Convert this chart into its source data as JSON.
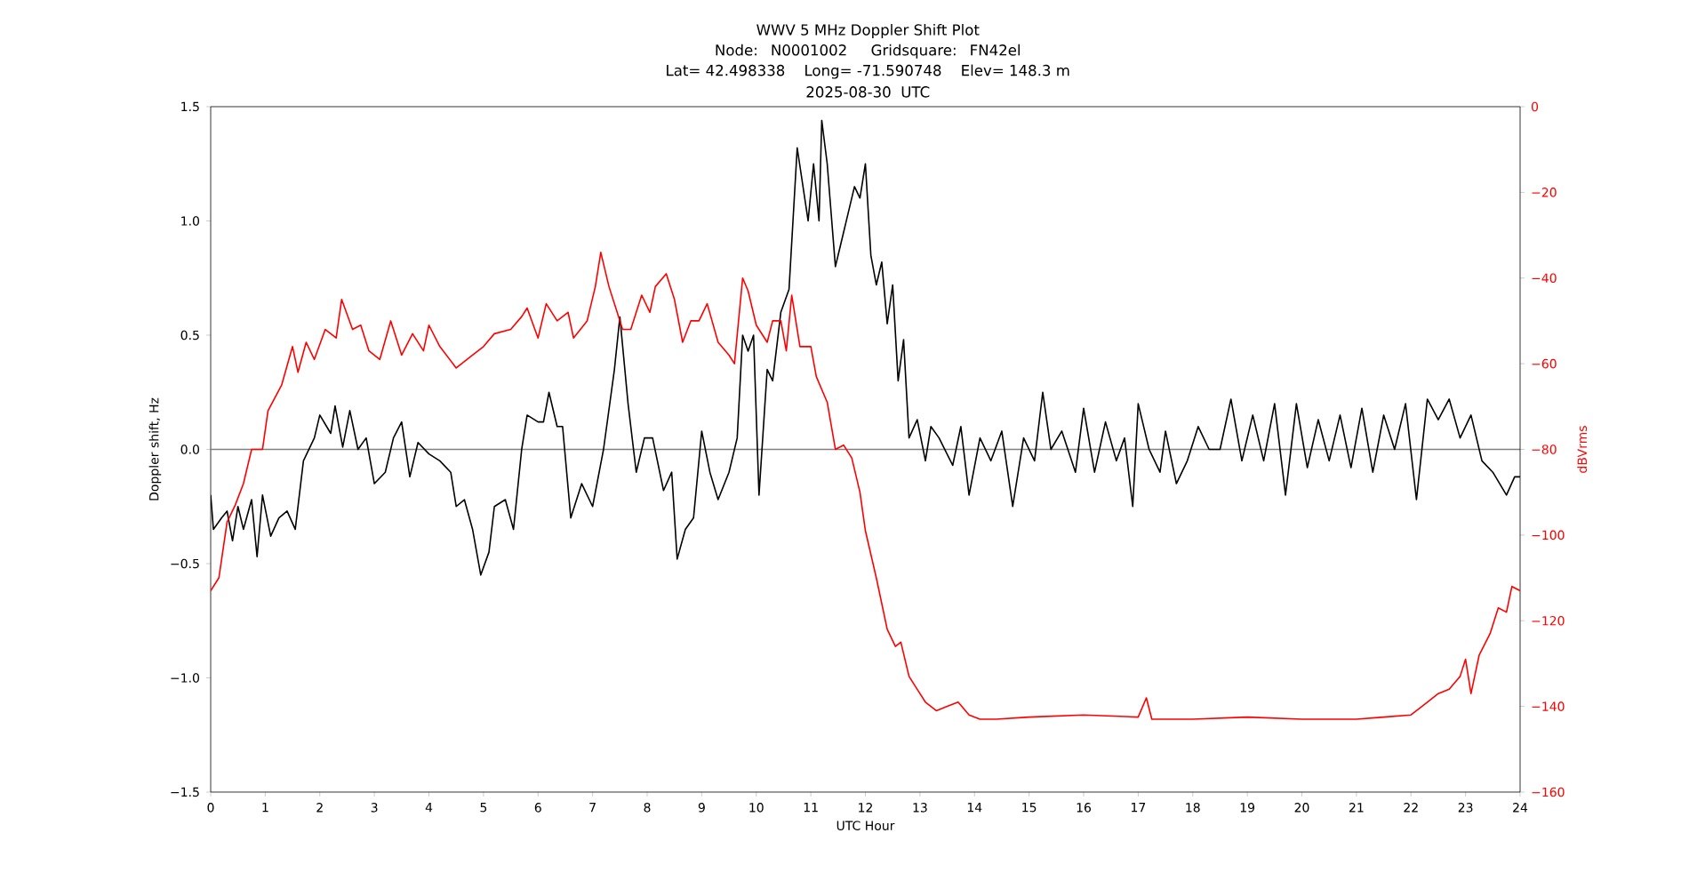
{
  "chart_data": {
    "type": "line",
    "title": "WWV 5 MHz Doppler Shift Plot",
    "subtitle": "Node:  N0001002     Gridsquare:  FN42el",
    "annotations": [
      "Lat= 42.498338    Long= -71.590748    Elev= 148.3 m",
      "2025-08-30  UTC"
    ],
    "xlabel": "UTC Hour",
    "ylabel": "Doppler shift, Hz",
    "y2label": "dBVrms",
    "xlim": [
      0,
      24
    ],
    "xticks": [
      0,
      1,
      2,
      3,
      4,
      5,
      6,
      7,
      8,
      9,
      10,
      11,
      12,
      13,
      14,
      15,
      16,
      17,
      18,
      19,
      20,
      21,
      22,
      23,
      24
    ],
    "ylim": [
      -1.5,
      1.5
    ],
    "yticks": [
      {
        "value": -1.5,
        "label": "−1.5"
      },
      {
        "value": -1.0,
        "label": "−1.0"
      },
      {
        "value": -0.5,
        "label": "−0.5"
      },
      {
        "value": 0,
        "label": "0.0"
      },
      {
        "value": 0.5,
        "label": "0.5"
      },
      {
        "value": 1.0,
        "label": "1.0"
      },
      {
        "value": 1.5,
        "label": "1.5"
      }
    ],
    "y2lim": [
      -160,
      0
    ],
    "y2ticks": [
      {
        "value": -160,
        "label": "−160"
      },
      {
        "value": -140,
        "label": "−140"
      },
      {
        "value": -120,
        "label": "−120"
      },
      {
        "value": -100,
        "label": "−100"
      },
      {
        "value": -80,
        "label": "−80"
      },
      {
        "value": -60,
        "label": "−60"
      },
      {
        "value": -40,
        "label": "−40"
      },
      {
        "value": -20,
        "label": "−20"
      },
      0
    ],
    "ref_lines": [
      {
        "axis": "y",
        "value": 0,
        "color": "#808080"
      }
    ],
    "series": [
      {
        "color": "#000000",
        "x": [
          0,
          0.05,
          0.2,
          0.3,
          0.4,
          0.5,
          0.6,
          0.75,
          0.85,
          0.95,
          1.1,
          1.25,
          1.4,
          1.55,
          1.7,
          1.9,
          2.0,
          2.2,
          2.28,
          2.42,
          2.55,
          2.7,
          2.85,
          3.0,
          3.2,
          3.35,
          3.5,
          3.65,
          3.8,
          4.0,
          4.2,
          4.4,
          4.5,
          4.65,
          4.8,
          4.95,
          5.1,
          5.2,
          5.4,
          5.55,
          5.7,
          5.8,
          6.0,
          6.1,
          6.2,
          6.35,
          6.45,
          6.6,
          6.8,
          7.0,
          7.2,
          7.4,
          7.5,
          7.65,
          7.8,
          7.95,
          8.1,
          8.3,
          8.45,
          8.55,
          8.7,
          8.85,
          9.0,
          9.15,
          9.3,
          9.5,
          9.65,
          9.75,
          9.85,
          9.95,
          10.05,
          10.2,
          10.3,
          10.45,
          10.6,
          10.75,
          10.95,
          11.05,
          11.15,
          11.2,
          11.3,
          11.45,
          11.55,
          11.7,
          11.8,
          11.9,
          12.0,
          12.1,
          12.2,
          12.3,
          12.4,
          12.5,
          12.6,
          12.7,
          12.8,
          12.95,
          13.1,
          13.2,
          13.35,
          13.6,
          13.75,
          13.9,
          14.1,
          14.3,
          14.5,
          14.7,
          14.9,
          15.1,
          15.25,
          15.4,
          15.6,
          15.85,
          16.0,
          16.2,
          16.4,
          16.6,
          16.75,
          16.9,
          17.0,
          17.2,
          17.4,
          17.5,
          17.7,
          17.9,
          18.1,
          18.3,
          18.5,
          18.7,
          18.9,
          19.1,
          19.3,
          19.5,
          19.7,
          19.9,
          20.1,
          20.3,
          20.5,
          20.7,
          20.9,
          21.1,
          21.3,
          21.5,
          21.7,
          21.9,
          22.1,
          22.3,
          22.5,
          22.7,
          22.9,
          23.1,
          23.3,
          23.5,
          23.75,
          23.9,
          24.0
        ],
        "values": [
          -0.2,
          -0.35,
          -0.3,
          -0.27,
          -0.4,
          -0.25,
          -0.35,
          -0.22,
          -0.47,
          -0.2,
          -0.38,
          -0.3,
          -0.27,
          -0.35,
          -0.05,
          0.05,
          0.15,
          0.07,
          0.19,
          0.01,
          0.17,
          0.0,
          0.05,
          -0.15,
          -0.1,
          0.05,
          0.12,
          -0.12,
          0.03,
          -0.02,
          -0.05,
          -0.1,
          -0.25,
          -0.22,
          -0.35,
          -0.55,
          -0.45,
          -0.25,
          -0.22,
          -0.35,
          0.0,
          0.15,
          0.12,
          0.12,
          0.25,
          0.1,
          0.1,
          -0.3,
          -0.15,
          -0.25,
          0.0,
          0.35,
          0.58,
          0.2,
          -0.1,
          0.05,
          0.05,
          -0.18,
          -0.1,
          -0.48,
          -0.35,
          -0.3,
          0.08,
          -0.1,
          -0.22,
          -0.1,
          0.05,
          0.5,
          0.43,
          0.5,
          -0.2,
          0.35,
          0.3,
          0.6,
          0.7,
          1.32,
          1.0,
          1.25,
          1.0,
          1.44,
          1.25,
          0.8,
          0.9,
          1.05,
          1.15,
          1.1,
          1.25,
          0.85,
          0.72,
          0.82,
          0.55,
          0.72,
          0.3,
          0.48,
          0.05,
          0.13,
          -0.05,
          0.1,
          0.05,
          -0.07,
          0.1,
          -0.2,
          0.05,
          -0.05,
          0.08,
          -0.25,
          0.05,
          -0.05,
          0.25,
          0.0,
          0.08,
          -0.1,
          0.18,
          -0.1,
          0.12,
          -0.05,
          0.05,
          -0.25,
          0.2,
          0.0,
          -0.1,
          0.08,
          -0.15,
          -0.05,
          0.1,
          0.0,
          0.0,
          0.22,
          -0.05,
          0.15,
          -0.05,
          0.2,
          -0.2,
          0.2,
          -0.08,
          0.13,
          -0.05,
          0.15,
          -0.08,
          0.18,
          -0.1,
          0.15,
          0.0,
          0.2,
          -0.22,
          0.22,
          0.13,
          0.22,
          0.05,
          0.15,
          -0.05,
          -0.1,
          -0.2,
          -0.12,
          -0.12
        ]
      },
      {
        "color": "#ff0000",
        "axis": "y2",
        "x": [
          0,
          0.15,
          0.3,
          0.45,
          0.6,
          0.75,
          0.95,
          1.05,
          1.3,
          1.5,
          1.6,
          1.75,
          1.9,
          2.1,
          2.3,
          2.4,
          2.6,
          2.75,
          2.9,
          3.1,
          3.3,
          3.5,
          3.7,
          3.9,
          4.0,
          4.2,
          4.5,
          4.8,
          5.0,
          5.2,
          5.5,
          5.7,
          5.8,
          6.0,
          6.15,
          6.35,
          6.55,
          6.65,
          6.9,
          7.05,
          7.15,
          7.3,
          7.45,
          7.55,
          7.7,
          7.9,
          8.05,
          8.15,
          8.35,
          8.5,
          8.65,
          8.8,
          8.95,
          9.1,
          9.3,
          9.5,
          9.6,
          9.75,
          9.85,
          10.0,
          10.2,
          10.3,
          10.45,
          10.55,
          10.65,
          10.8,
          11.0,
          11.1,
          11.3,
          11.45,
          11.6,
          11.75,
          11.9,
          12.0,
          12.2,
          12.4,
          12.55,
          12.65,
          12.8,
          12.95,
          13.1,
          13.3,
          13.5,
          13.7,
          13.9,
          14.1,
          14.4,
          15.0,
          16.0,
          17.0,
          17.15,
          17.25,
          18.0,
          19.0,
          20.0,
          21.0,
          21.5,
          22.0,
          22.3,
          22.5,
          22.7,
          22.9,
          23.0,
          23.1,
          23.25,
          23.45,
          23.6,
          23.75,
          23.85,
          24.0
        ],
        "values": [
          -113,
          -110,
          -97,
          -93,
          -88,
          -80,
          -80,
          -71,
          -65,
          -56,
          -62,
          -55,
          -59,
          -52,
          -54,
          -45,
          -52,
          -51,
          -57,
          -59,
          -50,
          -58,
          -53,
          -57,
          -51,
          -56,
          -61,
          -58,
          -56,
          -53,
          -52,
          -49,
          -47,
          -54,
          -46,
          -50,
          -48,
          -54,
          -50,
          -42,
          -34,
          -42,
          -48,
          -52,
          -52,
          -44,
          -48,
          -42,
          -39,
          -45,
          -55,
          -50,
          -50,
          -46,
          -55,
          -58,
          -60,
          -40,
          -43,
          -51,
          -55,
          -50,
          -50,
          -57,
          -44,
          -56,
          -56,
          -63,
          -69,
          -80,
          -79,
          -82,
          -90,
          -99,
          -110,
          -122,
          -126,
          -125,
          -133,
          -136,
          -139,
          -141,
          -140,
          -139,
          -142,
          -143,
          -143,
          -142.5,
          -142,
          -142.5,
          -138,
          -143,
          -143,
          -142.5,
          -143,
          -143,
          -142.5,
          -142,
          -139,
          -137,
          -136,
          -133,
          -129,
          -137,
          -128,
          -123,
          -117,
          -118,
          -112,
          -113
        ]
      }
    ]
  }
}
